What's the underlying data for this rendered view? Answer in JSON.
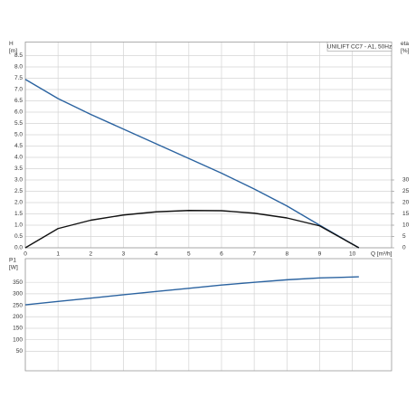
{
  "chart_data": [
    {
      "type": "line",
      "title": "UNILIFT CC7 - A1, 50Hz",
      "ylabel": "H",
      "ylabel_unit": "[m]",
      "y2label": "eta",
      "y2label_unit": "[%]",
      "xlabel": "Q [m³/h]",
      "xlim": [
        0,
        11.2
      ],
      "xticks": [
        0,
        1,
        2,
        3,
        4,
        5,
        6,
        7,
        8,
        9,
        10
      ],
      "ylim": [
        0,
        9.1
      ],
      "yticks": [
        {
          "value": 0,
          "label": "0.0"
        },
        0.5,
        {
          "value": 1,
          "label": "1.0"
        },
        1.5,
        {
          "value": 2,
          "label": "2.0"
        },
        2.5,
        {
          "value": 3,
          "label": "3.0"
        },
        3.5,
        {
          "value": 4,
          "label": "4.0"
        },
        4.5,
        {
          "value": 5,
          "label": "5.0"
        },
        5.5,
        {
          "value": 6,
          "label": "6.0"
        },
        6.5,
        {
          "value": 7,
          "label": "7.0"
        },
        7.5,
        {
          "value": 8,
          "label": "8.0"
        },
        8.5
      ],
      "y2lim": [
        0,
        91
      ],
      "y2ticks": [
        0,
        5,
        10,
        15,
        20,
        25,
        30
      ],
      "grid": true,
      "series": [
        {
          "name": "H",
          "color": "#2b63a0",
          "x": [
            0,
            1,
            2,
            3,
            4,
            5,
            6,
            7,
            8,
            9,
            10.2
          ],
          "values": [
            7.45,
            6.6,
            5.9,
            5.25,
            4.6,
            3.95,
            3.3,
            2.6,
            1.85,
            1.0,
            0
          ]
        },
        {
          "name": "eta",
          "color": "#111111",
          "axis": "y2",
          "x": [
            0,
            1,
            2,
            3,
            4,
            5,
            6,
            7,
            8,
            9,
            10.2
          ],
          "values": [
            0,
            8.5,
            12.2,
            14.5,
            15.9,
            16.5,
            16.4,
            15.3,
            13.2,
            9.7,
            0
          ]
        }
      ]
    },
    {
      "type": "line",
      "ylabel": "P1",
      "ylabel_unit": "[W]",
      "xlim": [
        0,
        11.2
      ],
      "ylim": [
        -35,
        453
      ],
      "yticks": [
        50,
        100,
        150,
        200,
        250,
        300,
        350
      ],
      "grid": true,
      "series": [
        {
          "name": "P1",
          "color": "#2b63a0",
          "x": [
            0,
            1,
            2,
            3,
            4,
            5,
            6,
            7,
            8,
            9,
            10,
            10.2
          ],
          "values": [
            252,
            267,
            281,
            296,
            310,
            324,
            338,
            350,
            361,
            369,
            373,
            374
          ]
        }
      ]
    }
  ]
}
